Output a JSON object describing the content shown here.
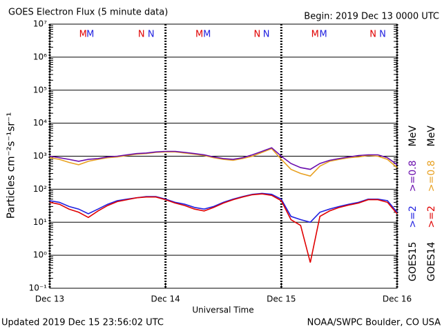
{
  "chart_data": {
    "type": "line",
    "title": "GOES Electron Flux (5 minute data)",
    "subtitle": "Begin: 2019 Dec 13 0000 UTC",
    "x_label": "Universal Time",
    "y_label": "Particles cm⁻²s⁻¹sr⁻¹",
    "footer_left": "Updated 2019 Dec 15 23:56:02 UTC",
    "footer_right": "NOAA/SWPC Boulder, CO USA",
    "log_scale": true,
    "grid": true,
    "threshold": 1000,
    "xlim": [
      0,
      72
    ],
    "xticks": [
      {
        "value": 0,
        "label": "Dec 13"
      },
      {
        "value": 24,
        "label": "Dec 14"
      },
      {
        "value": 48,
        "label": "Dec 15"
      },
      {
        "value": 72,
        "label": "Dec 16"
      }
    ],
    "ylim": [
      0.1,
      10000000
    ],
    "yticks": [
      {
        "value": 0.1,
        "label": "10⁻¹"
      },
      {
        "value": 1,
        "label": "10⁰"
      },
      {
        "value": 10,
        "label": "10¹"
      },
      {
        "value": 100,
        "label": "10²"
      },
      {
        "value": 1000,
        "label": "10³"
      },
      {
        "value": 10000,
        "label": "10⁴"
      },
      {
        "value": 100000,
        "label": "10⁵"
      },
      {
        "value": 1000000,
        "label": "10⁶"
      },
      {
        "value": 10000000,
        "label": "10⁷"
      }
    ],
    "legend": [
      {
        "label": "GOES15",
        "unit": "MeV"
      },
      {
        "label": "GOES14",
        "unit": "MeV"
      }
    ],
    "markers": [
      {
        "label": "M",
        "color": "#e00000",
        "x": 6.9
      },
      {
        "label": "M",
        "color": "#2020e0",
        "x": 8.4
      },
      {
        "label": "N",
        "color": "#e00000",
        "x": 19
      },
      {
        "label": "N",
        "color": "#2020e0",
        "x": 21
      },
      {
        "label": "M",
        "color": "#e00000",
        "x": 31
      },
      {
        "label": "M",
        "color": "#2020e0",
        "x": 32.6
      },
      {
        "label": "N",
        "color": "#e00000",
        "x": 43
      },
      {
        "label": "N",
        "color": "#2020e0",
        "x": 44.9
      },
      {
        "label": "M",
        "color": "#e00000",
        "x": 55
      },
      {
        "label": "M",
        "color": "#2020e0",
        "x": 56.7
      },
      {
        "label": "N",
        "color": "#e00000",
        "x": 67
      },
      {
        "label": "N",
        "color": "#2020e0",
        "x": 69
      }
    ],
    "x": [
      0,
      2,
      4,
      6,
      8,
      10,
      12,
      14,
      16,
      18,
      20,
      22,
      24,
      26,
      28,
      30,
      32,
      34,
      36,
      38,
      40,
      42,
      44,
      46,
      48,
      50,
      52,
      54,
      56,
      58,
      60,
      62,
      64,
      66,
      68,
      70,
      72
    ],
    "series": [
      {
        "name": ">=2",
        "color": "#2020e0",
        "values": [
          45,
          40,
          30,
          25,
          18,
          25,
          35,
          45,
          50,
          55,
          60,
          60,
          50,
          40,
          35,
          28,
          25,
          30,
          40,
          50,
          60,
          70,
          75,
          70,
          50,
          15,
          12,
          10,
          20,
          25,
          30,
          35,
          40,
          50,
          50,
          45,
          20
        ]
      },
      {
        "name": ">=0.8",
        "color": "#6a0dad",
        "values": [
          1000,
          900,
          800,
          700,
          800,
          850,
          950,
          1000,
          1100,
          1200,
          1250,
          1350,
          1400,
          1400,
          1300,
          1200,
          1100,
          950,
          850,
          800,
          900,
          1100,
          1400,
          1800,
          1000,
          600,
          450,
          400,
          600,
          750,
          850,
          950,
          1050,
          1100,
          1100,
          900,
          550
        ]
      },
      {
        "name": ">=2",
        "color": "#e00000",
        "values": [
          40,
          35,
          25,
          20,
          14,
          22,
          32,
          42,
          48,
          55,
          58,
          58,
          48,
          38,
          32,
          25,
          22,
          28,
          38,
          48,
          58,
          68,
          72,
          65,
          45,
          12,
          8,
          0.6,
          15,
          22,
          28,
          33,
          38,
          48,
          48,
          40,
          18
        ]
      },
      {
        "name": ">=0.8",
        "color": "#e8a020",
        "values": [
          900,
          800,
          650,
          550,
          700,
          800,
          900,
          950,
          1050,
          1150,
          1200,
          1300,
          1350,
          1350,
          1250,
          1150,
          1050,
          900,
          800,
          750,
          850,
          1000,
          1300,
          1700,
          800,
          400,
          300,
          250,
          500,
          700,
          800,
          900,
          950,
          1050,
          1000,
          800,
          450
        ]
      }
    ]
  }
}
